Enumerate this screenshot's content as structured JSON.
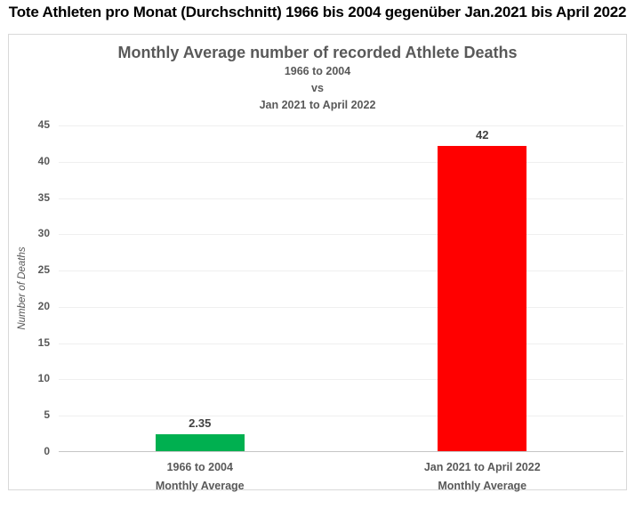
{
  "page_title": "Tote Athleten pro Monat (Durchschnitt) 1966 bis 2004 gegenüber Jan.2021 bis April 2022",
  "chart": {
    "title": "Monthly Average number of recorded Athlete Deaths",
    "subtitle_line1": "1966 to 2004",
    "subtitle_line2": "vs",
    "subtitle_line3": "Jan 2021 to April 2022",
    "ylabel": "Number of Deaths"
  },
  "chart_data": {
    "type": "bar",
    "title": "Monthly Average number of recorded Athlete Deaths",
    "subtitle": [
      "1966 to 2004",
      "vs",
      "Jan 2021 to April 2022"
    ],
    "categories": [
      [
        "1966 to 2004",
        "Monthly Average"
      ],
      [
        "Jan 2021 to April 2022",
        "Monthly Average"
      ]
    ],
    "values": [
      2.35,
      42
    ],
    "value_labels": [
      "2.35",
      "42"
    ],
    "bar_colors": [
      "#00B050",
      "#FF0000"
    ],
    "xlabel": "",
    "ylabel": "Number of Deaths",
    "ylim": [
      0,
      45
    ],
    "ytick_step": 5,
    "grid": true,
    "legend": false
  },
  "colors": {
    "green_bar": "#00B050",
    "red_bar": "#FF0000",
    "text_gray": "#595959",
    "value_label_gray": "#404040",
    "gridline": "#efefef",
    "axis_line": "#c6c6c6",
    "frame_border": "#d9d9d9"
  }
}
